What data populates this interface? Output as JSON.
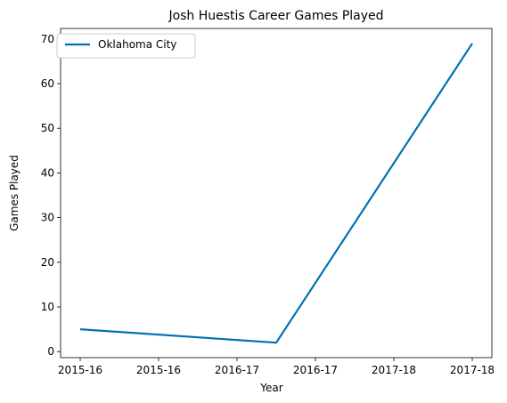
{
  "chart_data": {
    "type": "line",
    "title": "Josh Huestis Career Games Played",
    "xlabel": "Year",
    "ylabel": "Games Played",
    "x_tick_labels": [
      "2015-16",
      "2015-16",
      "2016-17",
      "2016-17",
      "2017-18",
      "2017-18"
    ],
    "y_ticks": [
      0,
      10,
      20,
      30,
      40,
      50,
      60,
      70
    ],
    "xlim": [
      -0.1,
      2.1
    ],
    "ylim": [
      -1.35,
      72.35
    ],
    "series": [
      {
        "name": "Oklahoma City",
        "color": "#0072b2",
        "x": [
          0,
          1,
          2
        ],
        "y": [
          5,
          2,
          69
        ]
      }
    ],
    "legend_position": "top-left",
    "grid": false
  }
}
